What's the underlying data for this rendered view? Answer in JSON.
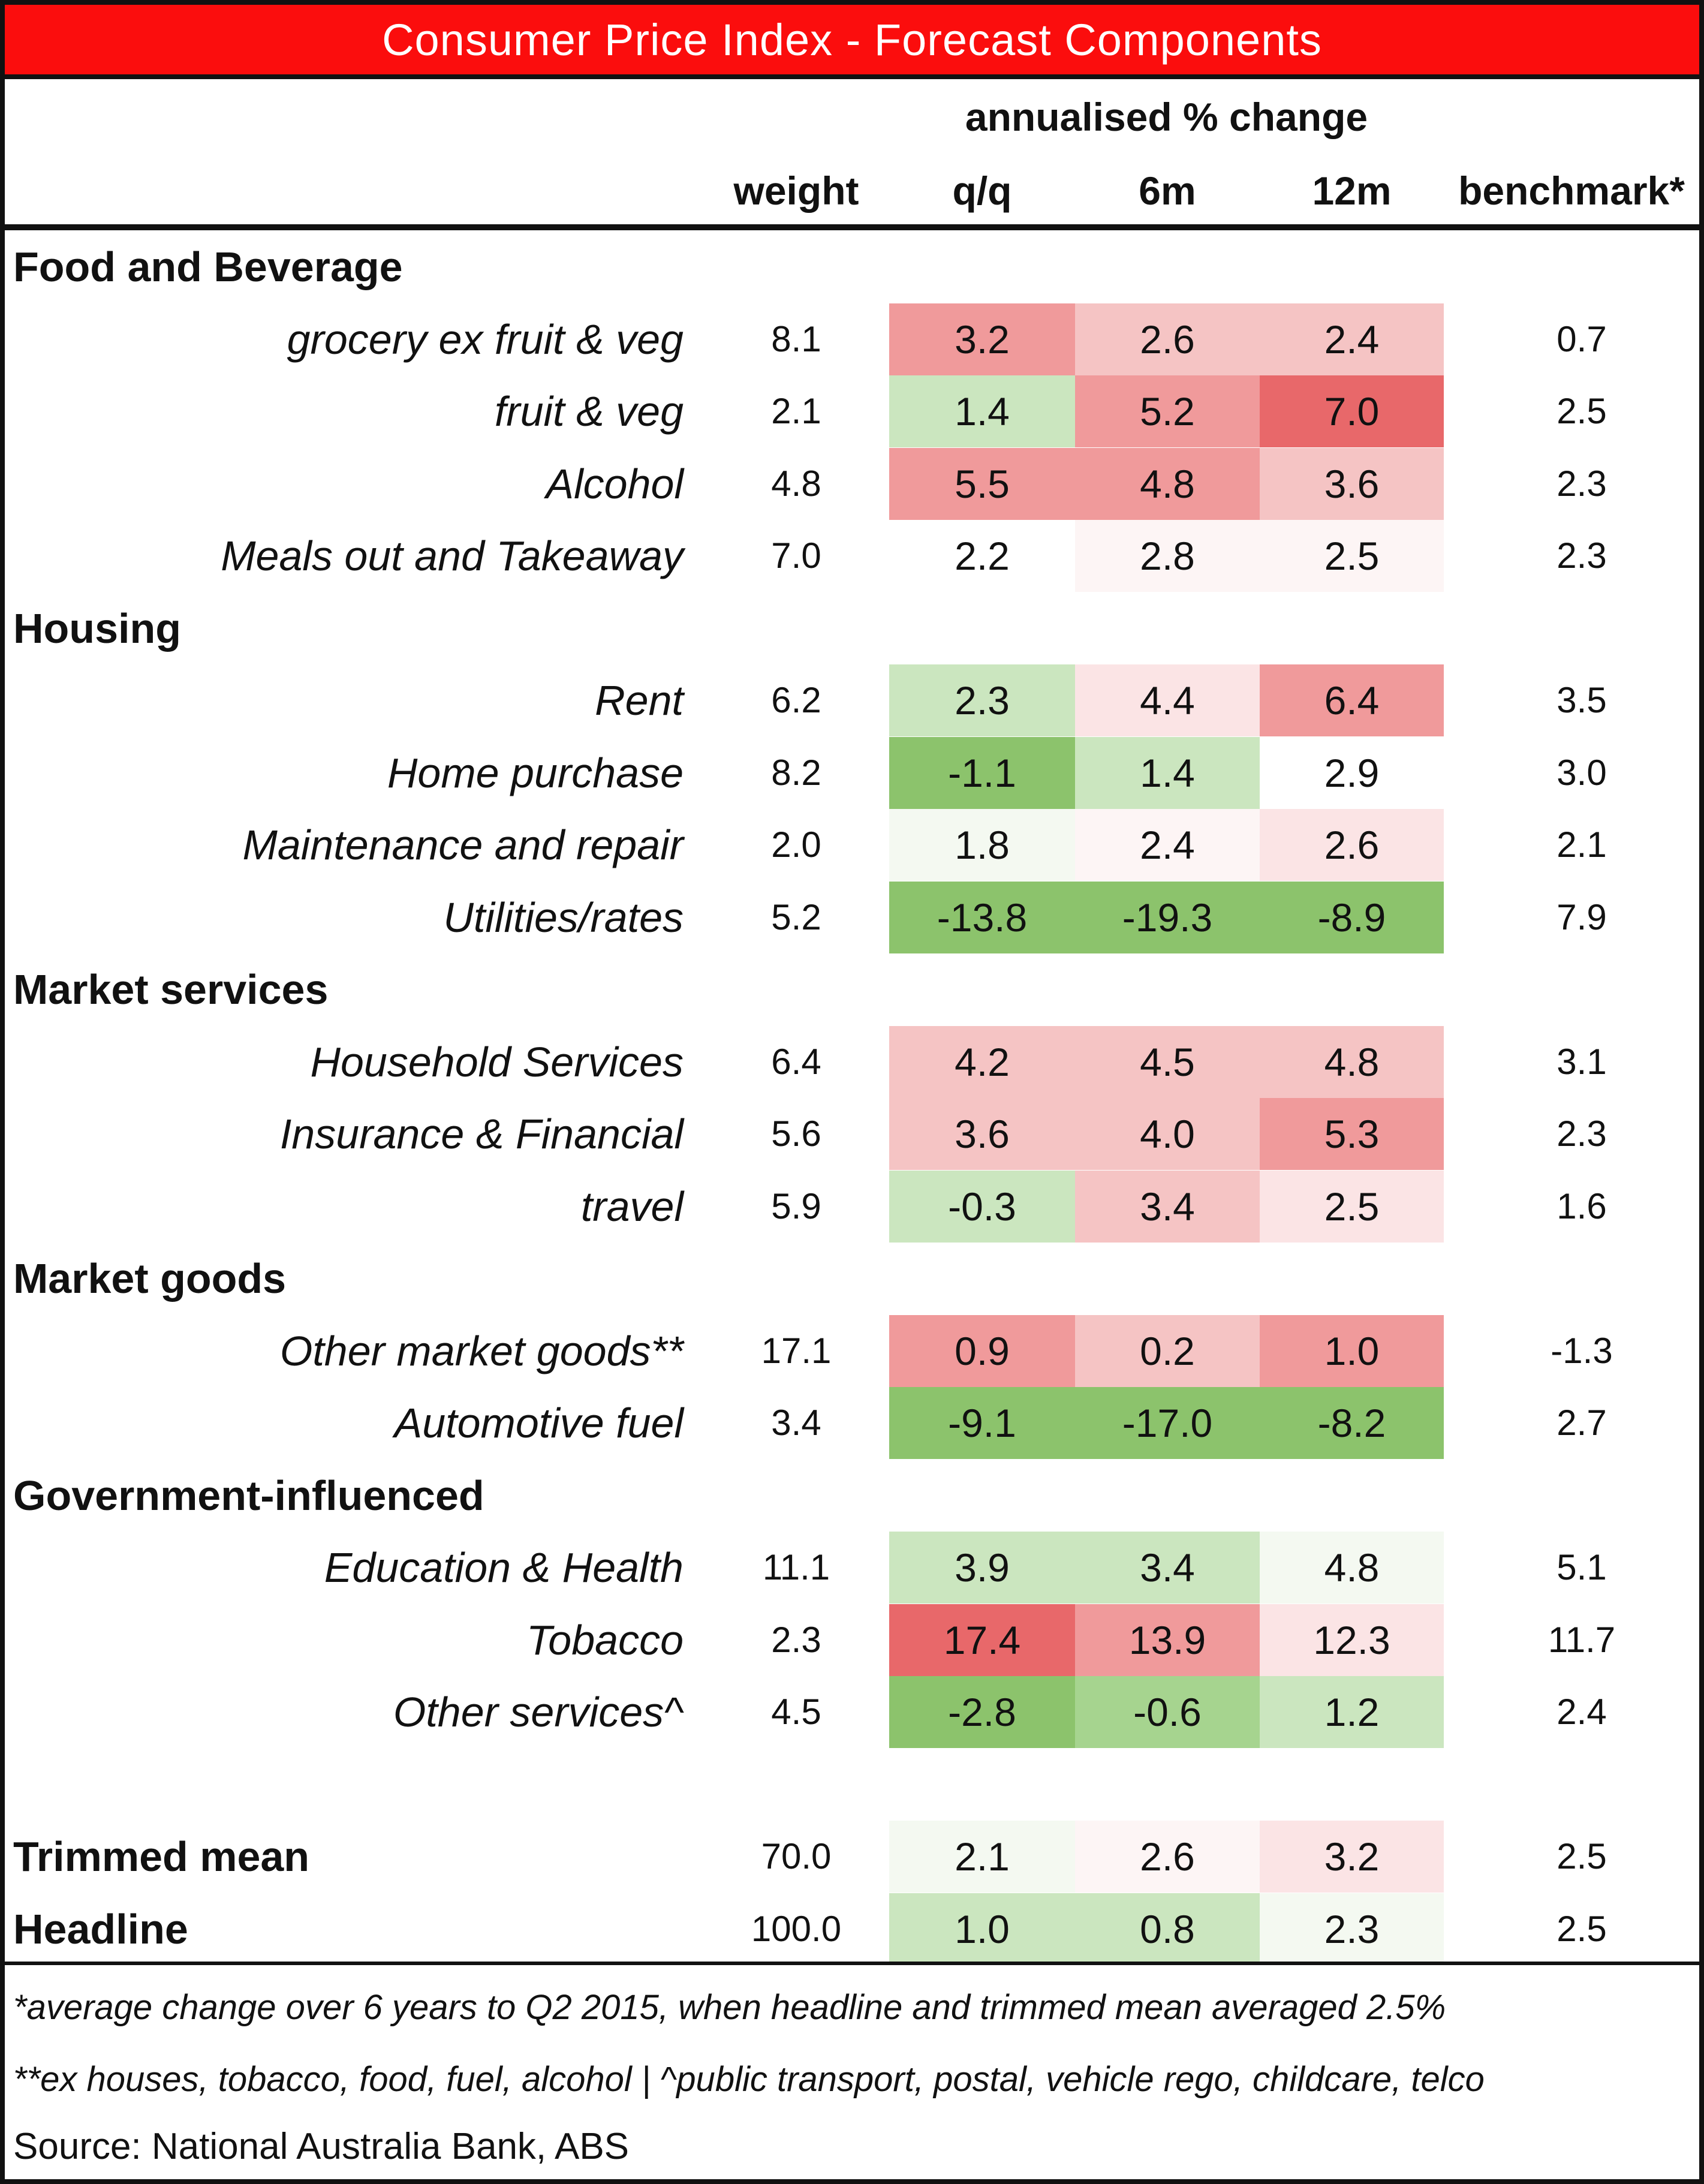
{
  "title": "Consumer Price Index - Forecast Components",
  "header": {
    "group_label": "annualised % change",
    "columns": [
      "weight",
      "q/q",
      "6m",
      "12m",
      "benchmark*"
    ]
  },
  "colors": {
    "title_bg": "#fb0d0d",
    "red_strong": "#e8686a",
    "red_medium": "#f09a9b",
    "red_light": "#f5c4c4",
    "red_faint": "#fbe4e5",
    "red_trace": "#fdf5f5",
    "green_strong": "#8cc36c",
    "green_medium": "#a6d48f",
    "green_light": "#cbe6bf",
    "green_faint": "#f4f9f1"
  },
  "sections": [
    {
      "label": "Food and Beverage",
      "items": [
        {
          "label": "grocery ex fruit & veg",
          "weight": "8.1",
          "qq": "3.2",
          "m6": "2.6",
          "m12": "2.4",
          "benchmark": "0.7",
          "qq_color": "red_medium",
          "m6_color": "red_light",
          "m12_color": "red_light"
        },
        {
          "label": "fruit & veg",
          "weight": "2.1",
          "qq": "1.4",
          "m6": "5.2",
          "m12": "7.0",
          "benchmark": "2.5",
          "qq_color": "green_light",
          "m6_color": "red_medium",
          "m12_color": "red_strong"
        },
        {
          "label": "Alcohol",
          "weight": "4.8",
          "qq": "5.5",
          "m6": "4.8",
          "m12": "3.6",
          "benchmark": "2.3",
          "qq_color": "red_medium",
          "m6_color": "red_medium",
          "m12_color": "red_light"
        },
        {
          "label": "Meals out and Takeaway",
          "weight": "7.0",
          "qq": "2.2",
          "m6": "2.8",
          "m12": "2.5",
          "benchmark": "2.3",
          "qq_color": "none",
          "m6_color": "red_trace",
          "m12_color": "red_trace"
        }
      ]
    },
    {
      "label": "Housing",
      "items": [
        {
          "label": "Rent",
          "weight": "6.2",
          "qq": "2.3",
          "m6": "4.4",
          "m12": "6.4",
          "benchmark": "3.5",
          "qq_color": "green_light",
          "m6_color": "red_faint",
          "m12_color": "red_medium"
        },
        {
          "label": "Home purchase",
          "weight": "8.2",
          "qq": "-1.1",
          "m6": "1.4",
          "m12": "2.9",
          "benchmark": "3.0",
          "qq_color": "green_strong",
          "m6_color": "green_light",
          "m12_color": "none"
        },
        {
          "label": "Maintenance and repair",
          "weight": "2.0",
          "qq": "1.8",
          "m6": "2.4",
          "m12": "2.6",
          "benchmark": "2.1",
          "qq_color": "green_faint",
          "m6_color": "red_trace",
          "m12_color": "red_faint"
        },
        {
          "label": "Utilities/rates",
          "weight": "5.2",
          "qq": "-13.8",
          "m6": "-19.3",
          "m12": "-8.9",
          "benchmark": "7.9",
          "qq_color": "green_strong",
          "m6_color": "green_strong",
          "m12_color": "green_strong"
        }
      ]
    },
    {
      "label": "Market services",
      "items": [
        {
          "label": "Household Services",
          "weight": "6.4",
          "qq": "4.2",
          "m6": "4.5",
          "m12": "4.8",
          "benchmark": "3.1",
          "qq_color": "red_light",
          "m6_color": "red_light",
          "m12_color": "red_light"
        },
        {
          "label": "Insurance & Financial",
          "weight": "5.6",
          "qq": "3.6",
          "m6": "4.0",
          "m12": "5.3",
          "benchmark": "2.3",
          "qq_color": "red_light",
          "m6_color": "red_light",
          "m12_color": "red_medium"
        },
        {
          "label": "travel",
          "weight": "5.9",
          "qq": "-0.3",
          "m6": "3.4",
          "m12": "2.5",
          "benchmark": "1.6",
          "qq_color": "green_light",
          "m6_color": "red_light",
          "m12_color": "red_faint"
        }
      ]
    },
    {
      "label": "Market goods",
      "items": [
        {
          "label": "Other market goods**",
          "weight": "17.1",
          "qq": "0.9",
          "m6": "0.2",
          "m12": "1.0",
          "benchmark": "-1.3",
          "qq_color": "red_medium",
          "m6_color": "red_light",
          "m12_color": "red_medium"
        },
        {
          "label": "Automotive fuel",
          "weight": "3.4",
          "qq": "-9.1",
          "m6": "-17.0",
          "m12": "-8.2",
          "benchmark": "2.7",
          "qq_color": "green_strong",
          "m6_color": "green_strong",
          "m12_color": "green_strong"
        }
      ]
    },
    {
      "label": "Government-influenced",
      "items": [
        {
          "label": "Education & Health",
          "weight": "11.1",
          "qq": "3.9",
          "m6": "3.4",
          "m12": "4.8",
          "benchmark": "5.1",
          "qq_color": "green_light",
          "m6_color": "green_light",
          "m12_color": "green_faint"
        },
        {
          "label": "Tobacco",
          "weight": "2.3",
          "qq": "17.4",
          "m6": "13.9",
          "m12": "12.3",
          "benchmark": "11.7",
          "qq_color": "red_strong",
          "m6_color": "red_medium",
          "m12_color": "red_faint"
        },
        {
          "label": "Other services^",
          "weight": "4.5",
          "qq": "-2.8",
          "m6": "-0.6",
          "m12": "1.2",
          "benchmark": "2.4",
          "qq_color": "green_strong",
          "m6_color": "green_medium",
          "m12_color": "green_light"
        }
      ]
    }
  ],
  "totals": [
    {
      "label": "Trimmed mean",
      "weight": "70.0",
      "qq": "2.1",
      "m6": "2.6",
      "m12": "3.2",
      "benchmark": "2.5",
      "qq_color": "green_faint",
      "m6_color": "red_trace",
      "m12_color": "red_faint"
    },
    {
      "label": "Headline",
      "weight": "100.0",
      "qq": "1.0",
      "m6": "0.8",
      "m12": "2.3",
      "benchmark": "2.5",
      "qq_color": "green_light",
      "m6_color": "green_light",
      "m12_color": "green_faint"
    }
  ],
  "footnotes": {
    "note1": "*average change over 6 years to Q2 2015, when headline and trimmed mean averaged 2.5%",
    "note2": "**ex houses, tobacco, food, fuel, alcohol | ^public transport, postal, vehicle rego, childcare, telco",
    "source": "Source: National Australia Bank, ABS"
  }
}
